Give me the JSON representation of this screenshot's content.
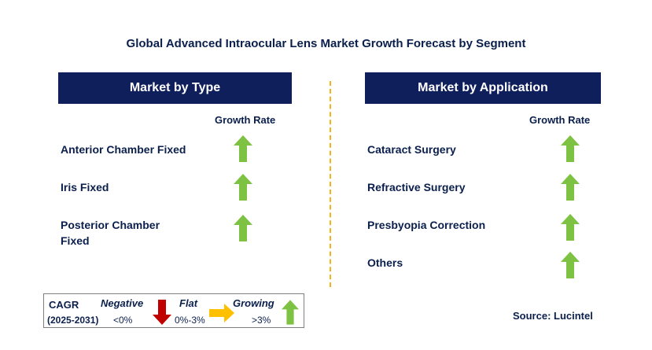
{
  "title": "Global Advanced Intraocular Lens Market Growth Forecast by Segment",
  "left_panel": {
    "header": "Market by Type",
    "growth_label": "Growth Rate",
    "items": [
      {
        "label_lines": [
          "Anterior Chamber Fixed"
        ],
        "trend": "growing"
      },
      {
        "label_lines": [
          "Iris Fixed"
        ],
        "trend": "growing"
      },
      {
        "label_lines": [
          "Posterior Chamber",
          "Fixed"
        ],
        "trend": "growing"
      }
    ]
  },
  "right_panel": {
    "header": "Market by Application",
    "growth_label": "Growth Rate",
    "items": [
      {
        "label_lines": [
          "Cataract Surgery"
        ],
        "trend": "growing"
      },
      {
        "label_lines": [
          "Refractive Surgery"
        ],
        "trend": "growing"
      },
      {
        "label_lines": [
          "Presbyopia Correction"
        ],
        "trend": "growing"
      },
      {
        "label_lines": [
          "Others"
        ],
        "trend": "growing"
      }
    ]
  },
  "legend": {
    "cagr": "CAGR",
    "period": "(2025-2031)",
    "negative_label": "Negative",
    "negative_range": "<0%",
    "flat_label": "Flat",
    "flat_range": "0%-3%",
    "growing_label": "Growing",
    "growing_range": ">3%"
  },
  "source": "Source: Lucintel",
  "colors": {
    "header_bg": "#0f1f5c",
    "growing": "#7dc242",
    "negative": "#c00000",
    "flat": "#ffc000",
    "divider": "#f2b418"
  }
}
